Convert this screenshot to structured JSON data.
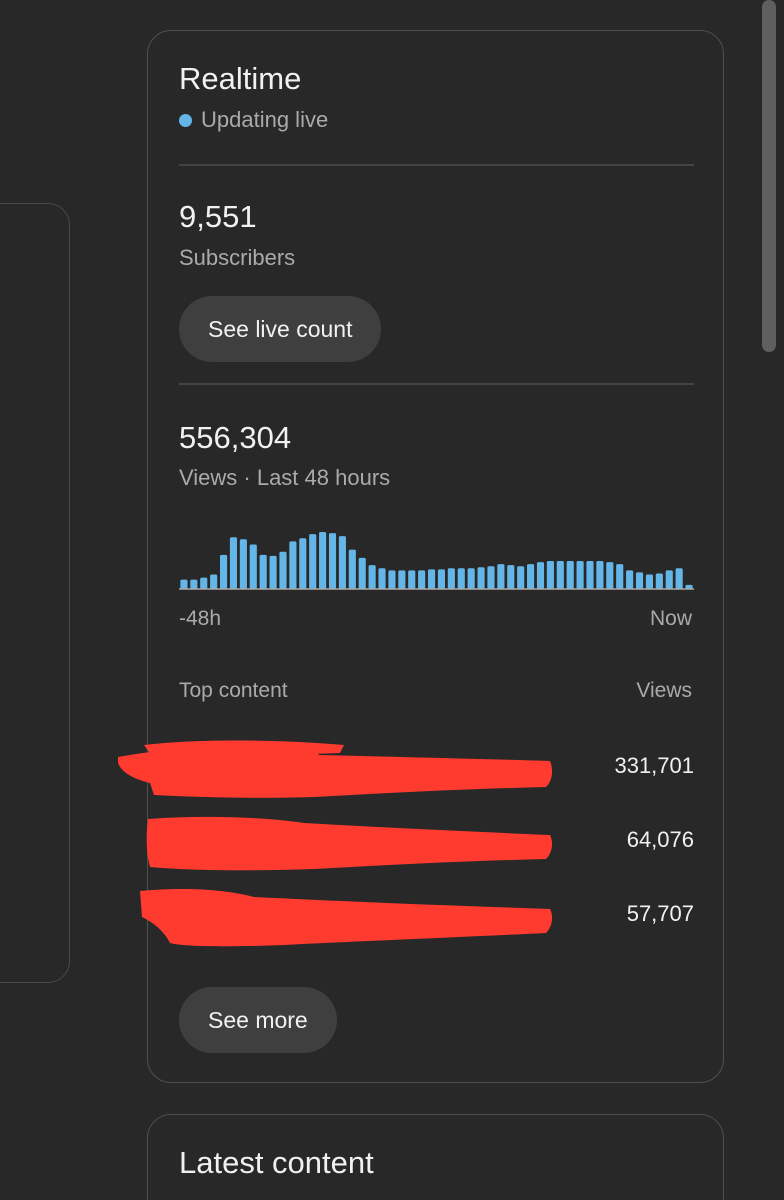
{
  "realtime": {
    "title": "Realtime",
    "status": "Updating live",
    "live_color": "#64b6e8",
    "subscribers": {
      "value": "9,551",
      "label": "Subscribers",
      "button_label": "See live count"
    },
    "views": {
      "value": "556,304",
      "label": "Views · Last 48 hours"
    },
    "chart_data": {
      "type": "bar",
      "title": "",
      "xlabel": "",
      "ylabel": "",
      "x_tick_labels": [
        "-48h",
        "Now"
      ],
      "bar_color": "#64b6e8",
      "grid": false,
      "values": [
        9,
        9,
        11,
        14,
        33,
        50,
        48,
        43,
        33,
        32,
        36,
        46,
        49,
        53,
        55,
        54,
        51,
        38,
        30,
        23,
        20,
        18,
        18,
        18,
        18,
        19,
        19,
        20,
        20,
        20,
        21,
        22,
        24,
        23,
        22,
        24,
        26,
        27,
        27,
        27,
        27,
        27,
        27,
        26,
        24,
        18,
        16,
        14,
        15,
        18,
        20,
        4
      ],
      "ylim": [
        0,
        56
      ]
    },
    "top_content": {
      "header_label": "Top content",
      "header_views": "Views",
      "rows": [
        {
          "views": "331,701"
        },
        {
          "views": "64,076"
        },
        {
          "views": "57,707"
        }
      ],
      "button_label": "See more"
    }
  },
  "latest_content": {
    "title": "Latest content"
  }
}
